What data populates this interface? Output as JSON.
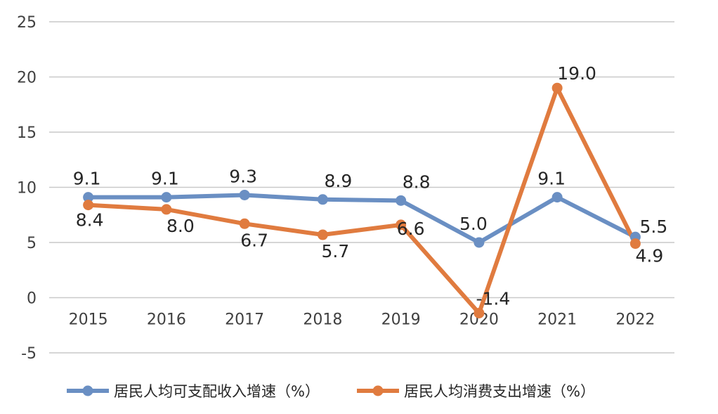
{
  "chart_data": {
    "type": "line",
    "categories": [
      "2015",
      "2016",
      "2017",
      "2018",
      "2019",
      "2020",
      "2021",
      "2022"
    ],
    "ylim": [
      -5,
      25
    ],
    "yticks": [
      25,
      20,
      15,
      10,
      5,
      0,
      -5
    ],
    "ytick_labels": [
      "25",
      "20",
      "15",
      "10",
      "5",
      "0",
      "-5"
    ],
    "grid": true,
    "legend_position": "bottom",
    "series": [
      {
        "name": "居民人均可支配收入增速（%）",
        "color": "#6a8fc3",
        "values": [
          9.1,
          9.1,
          9.3,
          8.9,
          8.8,
          5.0,
          9.1,
          5.5
        ],
        "labels": [
          "9.1",
          "9.1",
          "9.3",
          "8.9",
          "8.8",
          "5.0",
          "9.1",
          "5.5"
        ]
      },
      {
        "name": "居民人均消费支出增速（%）",
        "color": "#e07b3f",
        "values": [
          8.4,
          8.0,
          6.7,
          5.7,
          6.6,
          -1.4,
          19.0,
          4.9
        ],
        "labels": [
          "8.4",
          "8.0",
          "6.7",
          "5.7",
          "6.6",
          "-1.4",
          "19.0",
          "4.9"
        ]
      }
    ]
  }
}
